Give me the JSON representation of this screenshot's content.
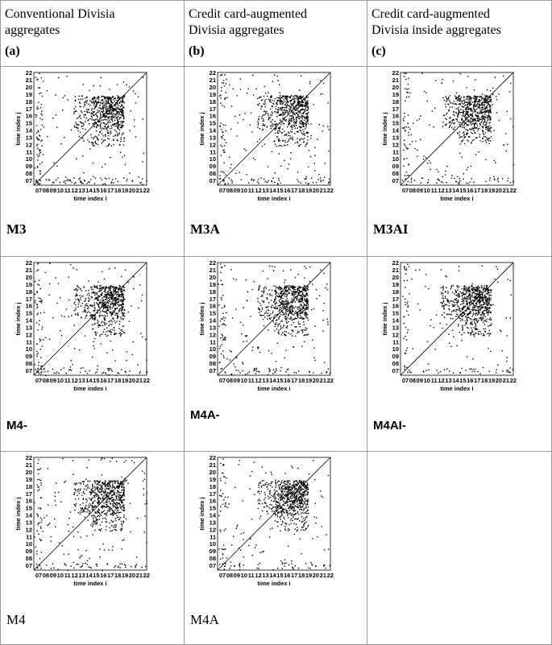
{
  "header": {
    "columns": [
      {
        "title_lines": [
          "Conventional Divisia",
          "aggregates"
        ],
        "label": "(a)"
      },
      {
        "title_lines": [
          "Credit  card-augmented",
          "Divisia aggregates"
        ],
        "label": "(b)"
      },
      {
        "title_lines": [
          "Credit card-augmented",
          "Divisia inside aggregates"
        ],
        "label": "(c)"
      }
    ]
  },
  "plot_axes": {
    "x_label": "time index i",
    "y_label": "time index j",
    "ticks": [
      "07",
      "08",
      "09",
      "10",
      "11",
      "12",
      "13",
      "14",
      "15",
      "16",
      "17",
      "18",
      "19",
      "20",
      "21",
      "22"
    ]
  },
  "rows": [
    [
      "M3",
      "M3A",
      "M3AI"
    ],
    [
      "M4-",
      "M4A-",
      "M4AI-"
    ],
    [
      "M4",
      "M4A"
    ]
  ]
}
